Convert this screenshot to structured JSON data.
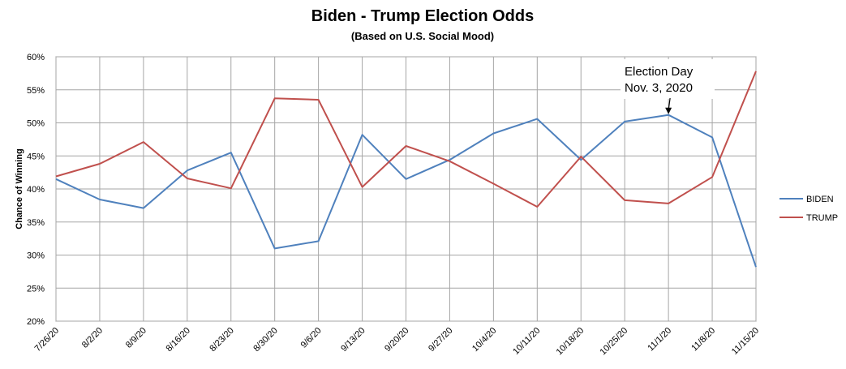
{
  "chart_data": {
    "type": "line",
    "title": "Biden - Trump Election Odds",
    "subtitle": "(Based on  U.S. Social Mood)",
    "xlabel": "",
    "ylabel": "Chance of Winning",
    "categories": [
      "7/26/20",
      "8/2/20",
      "8/9/20",
      "8/16/20",
      "8/23/20",
      "8/30/20",
      "9/6/20",
      "9/13/20",
      "9/20/20",
      "9/27/20",
      "10/4/20",
      "10/11/20",
      "10/18/20",
      "10/25/20",
      "11/1/20",
      "11/8/20",
      "11/15/20"
    ],
    "yticks": [
      "20%",
      "25%",
      "30%",
      "35%",
      "40%",
      "45%",
      "50%",
      "55%",
      "60%"
    ],
    "ylim": [
      20,
      60
    ],
    "grid": true,
    "legend_position": "right",
    "series": [
      {
        "name": "BIDEN",
        "color": "#4F81BD",
        "values": [
          41.5,
          38.4,
          37.1,
          42.8,
          45.5,
          31.0,
          32.1,
          48.2,
          41.5,
          44.4,
          48.4,
          50.6,
          44.4,
          50.2,
          51.2,
          47.8,
          28.2
        ]
      },
      {
        "name": "TRUMP",
        "color": "#C0504D",
        "values": [
          41.9,
          43.8,
          47.1,
          41.6,
          40.1,
          53.7,
          53.5,
          40.3,
          46.5,
          44.2,
          40.8,
          37.3,
          44.9,
          38.3,
          37.8,
          41.8,
          57.8
        ]
      }
    ],
    "annotation": {
      "lines": [
        "Election Day",
        "Nov. 3, 2020"
      ],
      "target_category": "11/1/20",
      "target_series": "BIDEN"
    }
  },
  "colors": {
    "grid": "#A6A6A6",
    "axis": "#868686"
  }
}
